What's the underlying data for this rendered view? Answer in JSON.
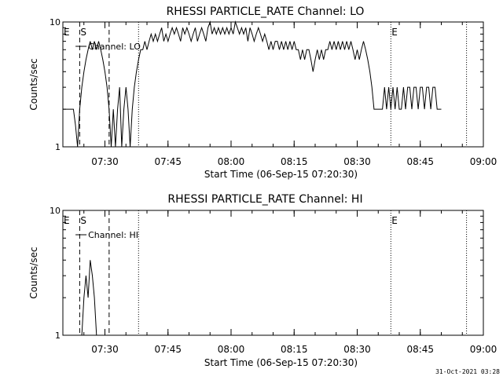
{
  "footer": {
    "date": "31-Oct-2021 03:28"
  },
  "chart_data": [
    {
      "type": "line",
      "title": "RHESSI PARTICLE_RATE Channel: LO",
      "xlabel": "Start Time (06-Sep-15 07:20:30)",
      "ylabel": "Counts/sec",
      "yscale": "log",
      "ylim": [
        1,
        10
      ],
      "y_tick_labels": [
        "1",
        "10"
      ],
      "xlim_minutes_after_0720": [
        0,
        100
      ],
      "x_tick_labels": [
        "07:30",
        "07:45",
        "08:00",
        "08:15",
        "08:30",
        "08:45",
        "09:00"
      ],
      "x_tick_minutes_after_0720": [
        10,
        25,
        40,
        55,
        70,
        85,
        100
      ],
      "legend": {
        "label": "Channel: LO",
        "placement": "top-left"
      },
      "markers": [
        {
          "label": "E",
          "time": "07:20",
          "style": "solid"
        },
        {
          "label": "S",
          "time": "07:24",
          "style": "dashed"
        },
        {
          "time": "07:31",
          "style": "dashed"
        },
        {
          "time": "07:38",
          "style": "dotted"
        },
        {
          "label": "E",
          "time": "08:38",
          "style": "dotted"
        },
        {
          "time": "08:56",
          "style": "dotted"
        }
      ],
      "series": [
        {
          "values_min_counts": [
            [
              0,
              2
            ],
            [
              1,
              2
            ],
            [
              2,
              2
            ],
            [
              2.5,
              2
            ],
            [
              3,
              1.5
            ],
            [
              3.5,
              1
            ],
            [
              4,
              2
            ],
            [
              4.5,
              3
            ],
            [
              5,
              4
            ],
            [
              5.5,
              5
            ],
            [
              6,
              6
            ],
            [
              6.5,
              7
            ],
            [
              7,
              6
            ],
            [
              7.5,
              7
            ],
            [
              8,
              6
            ],
            [
              8.5,
              7
            ],
            [
              9,
              6
            ],
            [
              9.5,
              5
            ],
            [
              10,
              4
            ],
            [
              10.5,
              3
            ],
            [
              11,
              2
            ],
            [
              11.5,
              1
            ],
            [
              12,
              2
            ],
            [
              12.5,
              1
            ],
            [
              13,
              2
            ],
            [
              13.5,
              3
            ],
            [
              14,
              1
            ],
            [
              14.5,
              2
            ],
            [
              15,
              3
            ],
            [
              15.5,
              2
            ],
            [
              16,
              1
            ],
            [
              16.5,
              2
            ],
            [
              17,
              3
            ],
            [
              17.5,
              4
            ],
            [
              18,
              5
            ],
            [
              18.5,
              6
            ],
            [
              19,
              6
            ],
            [
              19.5,
              7
            ],
            [
              20,
              6
            ],
            [
              20.5,
              7
            ],
            [
              21,
              8
            ],
            [
              21.5,
              7
            ],
            [
              22,
              8
            ],
            [
              22.5,
              7
            ],
            [
              23,
              8
            ],
            [
              23.5,
              9
            ],
            [
              24,
              7
            ],
            [
              24.5,
              8
            ],
            [
              25,
              7
            ],
            [
              25.5,
              8
            ],
            [
              26,
              9
            ],
            [
              26.5,
              8
            ],
            [
              27,
              9
            ],
            [
              27.5,
              8
            ],
            [
              28,
              7
            ],
            [
              28.5,
              9
            ],
            [
              29,
              8
            ],
            [
              29.5,
              9
            ],
            [
              30,
              8
            ],
            [
              30.5,
              7
            ],
            [
              31,
              8
            ],
            [
              31.5,
              9
            ],
            [
              32,
              7
            ],
            [
              32.5,
              8
            ],
            [
              33,
              9
            ],
            [
              33.5,
              8
            ],
            [
              34,
              7
            ],
            [
              34.5,
              9
            ],
            [
              35,
              10
            ],
            [
              35.5,
              8
            ],
            [
              36,
              9
            ],
            [
              36.5,
              8
            ],
            [
              37,
              9
            ],
            [
              37.5,
              8
            ],
            [
              38,
              9
            ],
            [
              38.5,
              8
            ],
            [
              39,
              9
            ],
            [
              39.5,
              8
            ],
            [
              40,
              9
            ],
            [
              40.5,
              8
            ],
            [
              41,
              10
            ],
            [
              41.5,
              9
            ],
            [
              42,
              8
            ],
            [
              42.5,
              9
            ],
            [
              43,
              8
            ],
            [
              43.5,
              9
            ],
            [
              44,
              7
            ],
            [
              44.5,
              9
            ],
            [
              45,
              8
            ],
            [
              45.5,
              7
            ],
            [
              46,
              8
            ],
            [
              46.5,
              9
            ],
            [
              47,
              8
            ],
            [
              47.5,
              7
            ],
            [
              48,
              8
            ],
            [
              48.5,
              7
            ],
            [
              49,
              6
            ],
            [
              49.5,
              7
            ],
            [
              50,
              6
            ],
            [
              50.5,
              7
            ],
            [
              51,
              7
            ],
            [
              51.5,
              6
            ],
            [
              52,
              7
            ],
            [
              52.5,
              6
            ],
            [
              53,
              7
            ],
            [
              53.5,
              6
            ],
            [
              54,
              7
            ],
            [
              54.5,
              6
            ],
            [
              55,
              7
            ],
            [
              55.5,
              6
            ],
            [
              56,
              6
            ],
            [
              56.5,
              5
            ],
            [
              57,
              6
            ],
            [
              57.5,
              5
            ],
            [
              58,
              6
            ],
            [
              58.5,
              6
            ],
            [
              59,
              5
            ],
            [
              59.5,
              4
            ],
            [
              60,
              5
            ],
            [
              60.5,
              6
            ],
            [
              61,
              5
            ],
            [
              61.5,
              6
            ],
            [
              62,
              5
            ],
            [
              62.5,
              6
            ],
            [
              63,
              6
            ],
            [
              63.5,
              7
            ],
            [
              64,
              6
            ],
            [
              64.5,
              7
            ],
            [
              65,
              6
            ],
            [
              65.5,
              7
            ],
            [
              66,
              6
            ],
            [
              66.5,
              7
            ],
            [
              67,
              6
            ],
            [
              67.5,
              7
            ],
            [
              68,
              6
            ],
            [
              68.5,
              7
            ],
            [
              69,
              6
            ],
            [
              69.5,
              5
            ],
            [
              70,
              6
            ],
            [
              70.5,
              5
            ],
            [
              71,
              6
            ],
            [
              71.5,
              7
            ],
            [
              72,
              6
            ],
            [
              72.5,
              5
            ],
            [
              73,
              4
            ],
            [
              73.5,
              3
            ],
            [
              74,
              2
            ],
            [
              74.5,
              2
            ],
            [
              75,
              2
            ],
            [
              75.5,
              2
            ],
            [
              76,
              2
            ],
            [
              76.5,
              3
            ],
            [
              77,
              2
            ],
            [
              77.5,
              3
            ],
            [
              78,
              2
            ],
            [
              78.5,
              3
            ],
            [
              79,
              2
            ],
            [
              79.5,
              3
            ],
            [
              80,
              2
            ],
            [
              80.5,
              2
            ],
            [
              81,
              3
            ],
            [
              81.5,
              2
            ],
            [
              82,
              3
            ],
            [
              82.5,
              3
            ],
            [
              83,
              2
            ],
            [
              83.5,
              3
            ],
            [
              84,
              3
            ],
            [
              84.5,
              2
            ],
            [
              85,
              3
            ],
            [
              85.5,
              3
            ],
            [
              86,
              2
            ],
            [
              86.5,
              3
            ],
            [
              87,
              3
            ],
            [
              87.5,
              2
            ],
            [
              88,
              3
            ],
            [
              88.5,
              3
            ],
            [
              89,
              2
            ],
            [
              89.5,
              2
            ],
            [
              90,
              2
            ]
          ]
        }
      ]
    },
    {
      "type": "line",
      "title": "RHESSI PARTICLE_RATE Channel: HI",
      "xlabel": "Start Time (06-Sep-15 07:20:30)",
      "ylabel": "Counts/sec",
      "yscale": "log",
      "ylim": [
        1,
        10
      ],
      "y_tick_labels": [
        "1",
        "10"
      ],
      "xlim_minutes_after_0720": [
        0,
        100
      ],
      "x_tick_labels": [
        "07:30",
        "07:45",
        "08:00",
        "08:15",
        "08:30",
        "08:45",
        "09:00"
      ],
      "x_tick_minutes_after_0720": [
        10,
        25,
        40,
        55,
        70,
        85,
        100
      ],
      "legend": {
        "label": "Channel: HI",
        "placement": "top-left"
      },
      "markers": [
        {
          "label": "E",
          "time": "07:20",
          "style": "solid"
        },
        {
          "label": "S",
          "time": "07:24",
          "style": "dashed"
        },
        {
          "time": "07:31",
          "style": "dashed"
        },
        {
          "time": "07:38",
          "style": "dotted"
        },
        {
          "label": "E",
          "time": "08:38",
          "style": "dotted"
        },
        {
          "time": "08:56",
          "style": "dotted"
        }
      ],
      "series": [
        {
          "values_min_counts": [
            [
              4.5,
              1
            ],
            [
              5,
              2
            ],
            [
              5.5,
              3
            ],
            [
              6,
              2
            ],
            [
              6.5,
              4
            ],
            [
              7,
              3
            ],
            [
              7.5,
              2
            ],
            [
              8,
              1
            ]
          ]
        }
      ]
    }
  ]
}
